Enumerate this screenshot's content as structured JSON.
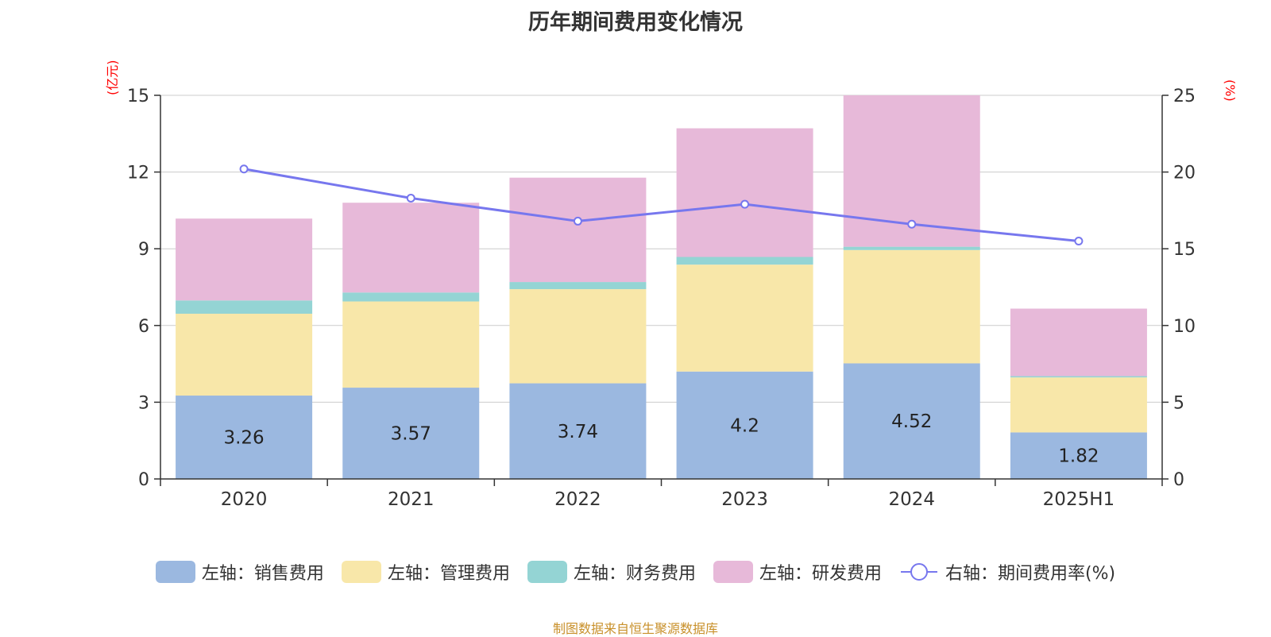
{
  "title": "历年期间费用变化情况",
  "left_axis_unit": "(亿元)",
  "right_axis_unit": "(%)",
  "source": "制图数据来自恒生聚源数据库",
  "legend": [
    {
      "label": "左轴：销售费用",
      "color": "#9bb8e0",
      "kind": "bar"
    },
    {
      "label": "左轴：管理费用",
      "color": "#f8e7a9",
      "kind": "bar"
    },
    {
      "label": "左轴：财务费用",
      "color": "#94d4d4",
      "kind": "bar"
    },
    {
      "label": "左轴：研发费用",
      "color": "#e7b9d9",
      "kind": "bar"
    },
    {
      "label": "右轴：期间费用率(%)",
      "color": "#7777ee",
      "kind": "line"
    }
  ],
  "chart_data": {
    "type": "bar",
    "stacked": true,
    "categories": [
      "2020",
      "2021",
      "2022",
      "2023",
      "2024",
      "2025H1"
    ],
    "y_left": {
      "ylim": [
        0,
        15
      ],
      "ticks": [
        "0",
        "3",
        "6",
        "9",
        "12",
        "15"
      ]
    },
    "y_right": {
      "ylim": [
        0,
        25
      ],
      "ticks": [
        "0",
        "5",
        "10",
        "15",
        "20",
        "25"
      ]
    },
    "series": [
      {
        "name": "左轴：销售费用",
        "axis": "left",
        "color": "#9bb8e0",
        "values": [
          3.26,
          3.57,
          3.74,
          4.2,
          4.52,
          1.82
        ],
        "labels": [
          "3.26",
          "3.57",
          "3.74",
          "4.2",
          "4.52",
          "1.82"
        ]
      },
      {
        "name": "左轴：管理费用",
        "axis": "left",
        "color": "#f8e7a9",
        "values": [
          3.2,
          3.37,
          3.68,
          4.18,
          4.43,
          2.15
        ]
      },
      {
        "name": "左轴：财务费用",
        "axis": "left",
        "color": "#94d4d4",
        "values": [
          0.52,
          0.35,
          0.28,
          0.3,
          0.13,
          0.05
        ]
      },
      {
        "name": "左轴：研发费用",
        "axis": "left",
        "color": "#e7b9d9",
        "values": [
          3.2,
          3.51,
          4.08,
          5.03,
          5.92,
          2.64
        ]
      },
      {
        "name": "右轴：期间费用率(%)",
        "axis": "right",
        "type": "line",
        "color": "#7777ee",
        "values": [
          20.2,
          18.3,
          16.8,
          17.9,
          16.6,
          15.5
        ]
      }
    ],
    "grid": true,
    "legend_position": "bottom"
  }
}
